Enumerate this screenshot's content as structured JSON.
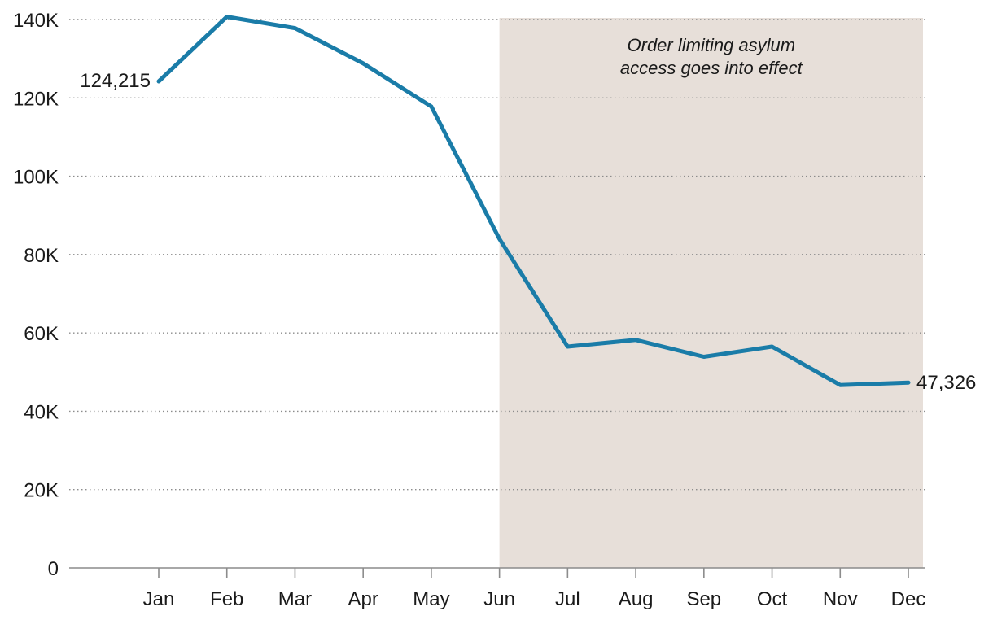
{
  "chart_data": {
    "type": "line",
    "categories": [
      "Jan",
      "Feb",
      "Mar",
      "Apr",
      "May",
      "Jun",
      "Jul",
      "Aug",
      "Sep",
      "Oct",
      "Nov",
      "Dec"
    ],
    "series": [
      {
        "values": [
          124215,
          140700,
          137800,
          128800,
          117800,
          84000,
          56500,
          58200,
          53900,
          56500,
          46700,
          47326
        ],
        "color": "#1a7ca8"
      }
    ],
    "ylim": [
      0,
      140000
    ],
    "yticks": [
      0,
      20000,
      40000,
      60000,
      80000,
      100000,
      120000,
      140000
    ],
    "ytick_labels": [
      "0",
      "20K",
      "40K",
      "60K",
      "80K",
      "100K",
      "120K",
      "140K"
    ],
    "grid": true,
    "start_label": "124,215",
    "end_label": "47,326",
    "annotation": {
      "lines": [
        "Order limiting asylum",
        "access goes into effect"
      ],
      "shade_from": "Jun",
      "shade_to": "Dec",
      "shade_color": "#e7dfd9"
    }
  }
}
